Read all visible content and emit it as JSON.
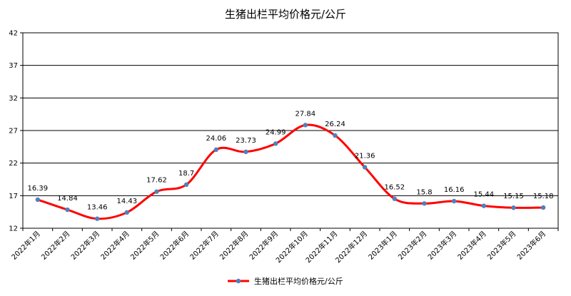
{
  "chart_data": {
    "type": "line",
    "title": "生猪出栏平均价格元/公斤",
    "xlabel": "",
    "ylabel": "",
    "categories": [
      "2022年1月",
      "2022年2月",
      "2022年3月",
      "2022年4月",
      "2022年5月",
      "2022年6月",
      "2022年7月",
      "2022年8月",
      "2022年9月",
      "2022年10月",
      "2022年11月",
      "2022年12月",
      "2023年1月",
      "2023年2月",
      "2023年3月",
      "2023年4月",
      "2023年5月",
      "2023年6月"
    ],
    "series": [
      {
        "name": "生猪出栏平均价格元/公斤",
        "values": [
          16.39,
          14.84,
          13.46,
          14.43,
          17.62,
          18.7,
          24.06,
          23.73,
          24.99,
          27.84,
          26.24,
          21.36,
          16.52,
          15.8,
          16.16,
          15.44,
          15.15,
          15.18
        ],
        "value_labels": [
          "16.39",
          "14.84",
          "13.46",
          "14.43",
          "17.62",
          "18.7",
          "24.06",
          "23.73",
          "24.99",
          "27.84",
          "26.24",
          "21.36",
          "16.52",
          "15.8",
          "16.16",
          "15.44",
          "15.15",
          "15.18"
        ],
        "line_color": "#ff0000",
        "marker_color": "#4f81bd"
      }
    ],
    "ylim": [
      12,
      42
    ],
    "yticks": [
      12,
      17,
      22,
      27,
      32,
      37,
      42
    ],
    "ytick_labels": [
      "12",
      "17",
      "22",
      "27",
      "32",
      "37",
      "42"
    ],
    "grid": "horizontal",
    "legend": "bottom-center"
  }
}
